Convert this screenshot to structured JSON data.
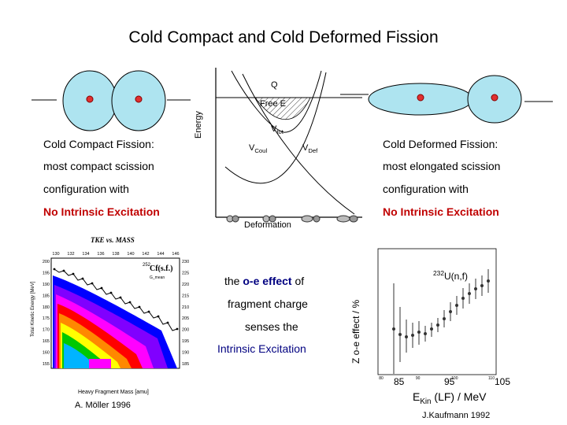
{
  "slide": {
    "title": "Cold Compact and Cold Deformed Fission"
  },
  "diagram": {
    "q_label": "Q",
    "free_e_label": "Free E",
    "energy_axis_label": "Energy",
    "deformation_axis_label": "Deformation",
    "v_label": "V",
    "v_tot_sub": "tot",
    "v_coul_sub": "Coul",
    "v_def_sub": "Def"
  },
  "left_text": {
    "heading": "Cold Compact Fission:",
    "line1": "most compact scission",
    "line2": "configuration with",
    "highlight": "No Intrinsic Excitation"
  },
  "right_text": {
    "heading": "Cold Deformed Fission:",
    "line1": "most elongated scission",
    "line2": "configuration with",
    "highlight": "No Intrinsic Excitation"
  },
  "center_text": {
    "prefix": "the ",
    "effect_term": "o-e effect",
    "suffix": " of",
    "line2": "fragment charge",
    "line3": "senses the",
    "highlight": "Intrinsic Excitation"
  },
  "tke_plot": {
    "title": "TKE vs. MASS",
    "ylabel": "Total Kinetic Energy [MeV]",
    "xlabel": "Heavy Fragment Mass [amu]",
    "reaction_sup": "252",
    "reaction": "Cf(s.f.)",
    "legend_label": "G_mean",
    "y_ticks": [
      "200",
      "195",
      "190",
      "185",
      "180",
      "175",
      "170",
      "165",
      "160",
      "155"
    ],
    "y_ticks_right": [
      "230",
      "225",
      "220",
      "215",
      "210",
      "205",
      "200",
      "195",
      "190",
      "185"
    ],
    "x_ticks": [
      "130",
      "132",
      "134",
      "136",
      "138",
      "140",
      "142",
      "144",
      "146"
    ],
    "colors": [
      "#ff00ff",
      "#00b4ff",
      "#00c800",
      "#ffff00",
      "#ff8800",
      "#ff0000",
      "#ff00ff",
      "#8000ff",
      "#0000ff"
    ],
    "credit": "A. Möller 1996"
  },
  "oe_plot": {
    "ylabel": "Z o-e effect / %",
    "annotation_sup": "232",
    "annotation": "U(n,f)",
    "x_ticks": [
      "85",
      "95",
      "105"
    ],
    "small_x_ticks": [
      "80",
      "90",
      "100",
      "110"
    ],
    "xlabel_main": "E",
    "xlabel_sub": "Kin",
    "xlabel_rest": " (LF) / MeV",
    "credit": "J.Kaufmann 1992"
  },
  "fragments": {
    "nucleus_fill": "#aee4f0",
    "dot_color": "#e03030"
  }
}
